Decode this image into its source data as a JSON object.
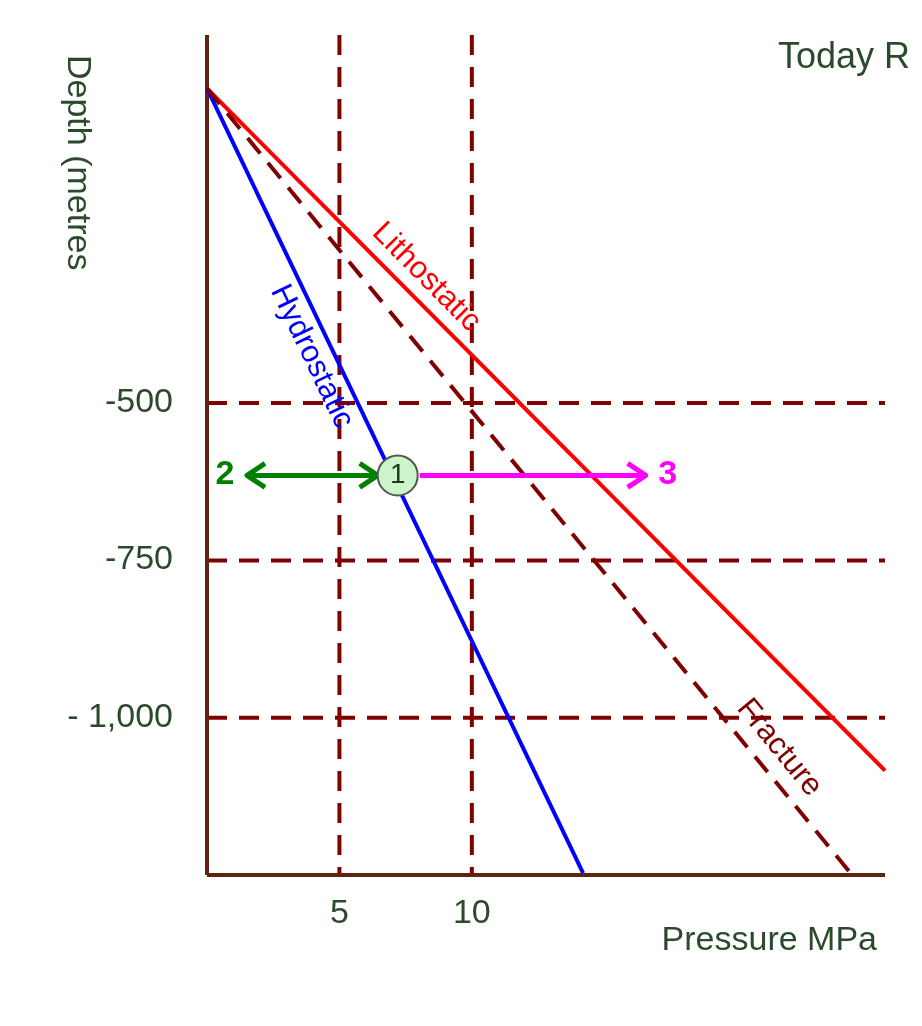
{
  "chart_data": {
    "type": "line",
    "title": "Today R",
    "xlabel": "Pressure MPa",
    "ylabel": "Depth (metres",
    "xlim": [
      0,
      25.6
    ],
    "ylim": [
      -1250,
      85
    ],
    "xticks": [
      5,
      10
    ],
    "yticks": [
      {
        "value": -500,
        "label": "-500"
      },
      {
        "value": -750,
        "label": "-750"
      },
      {
        "value": -1000,
        "label": "- 1,000"
      }
    ],
    "series": [
      {
        "name": "Lithostatic",
        "color": "#ff0000",
        "x": [
          0,
          25.6
        ],
        "values": [
          0,
          -1084
        ],
        "line_style": "solid"
      },
      {
        "name": "Hydrostatic",
        "color": "#0000ff",
        "x": [
          0,
          14.2
        ],
        "values": [
          0,
          -1247
        ],
        "line_style": "solid"
      },
      {
        "name": "Fracture",
        "color": "#800000",
        "x": [
          0,
          24.3
        ],
        "values": [
          0,
          -1247
        ],
        "line_style": "dashed"
      }
    ],
    "ref_lines": [
      {
        "axis": "y",
        "value": -500,
        "color": "#800000",
        "line_style": "dashed"
      },
      {
        "axis": "y",
        "value": -750,
        "color": "#800000",
        "line_style": "dashed"
      },
      {
        "axis": "y",
        "value": -1000,
        "color": "#800000",
        "line_style": "dashed"
      },
      {
        "axis": "x",
        "value": 5,
        "color": "#800000",
        "line_style": "dashed"
      },
      {
        "axis": "x",
        "value": 10,
        "color": "#800000",
        "line_style": "dashed"
      }
    ],
    "annotations": [
      {
        "text": "1",
        "x": 7.2,
        "y": -615
      },
      "2",
      "3"
    ],
    "grid": false
  }
}
